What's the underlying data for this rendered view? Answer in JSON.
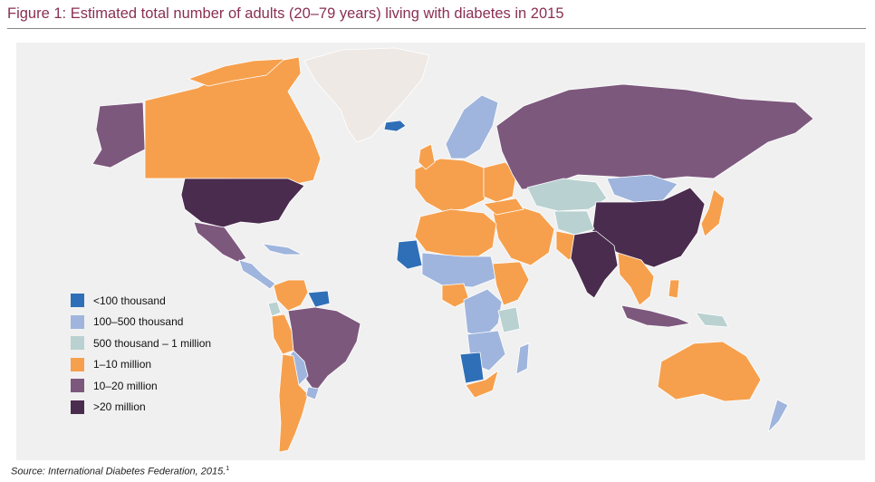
{
  "figure": {
    "title": "Figure 1: Estimated total number of adults (20–79 years) living with diabetes in 2015"
  },
  "legend": {
    "items": [
      {
        "label": "<100 thousand",
        "color": "#2f6fb8"
      },
      {
        "label": "100–500 thousand",
        "color": "#9fb5dd"
      },
      {
        "label": "500 thousand – 1 million",
        "color": "#b9d1d1"
      },
      {
        "label": "1–10 million",
        "color": "#f6a04d"
      },
      {
        "label": "10–20 million",
        "color": "#7d587d"
      },
      {
        "label": ">20 million",
        "color": "#4a2c4e"
      }
    ]
  },
  "source": {
    "text": "Source: International Diabetes Federation, 2015.",
    "ref": "1"
  },
  "colors": {
    "no_data": "#efe9e6",
    "lt100k": "#2f6fb8",
    "k100_500": "#9fb5dd",
    "k500_1m": "#b9d1d1",
    "m1_10": "#f6a04d",
    "m10_20": "#7d587d",
    "gt20m": "#4a2c4e"
  }
}
